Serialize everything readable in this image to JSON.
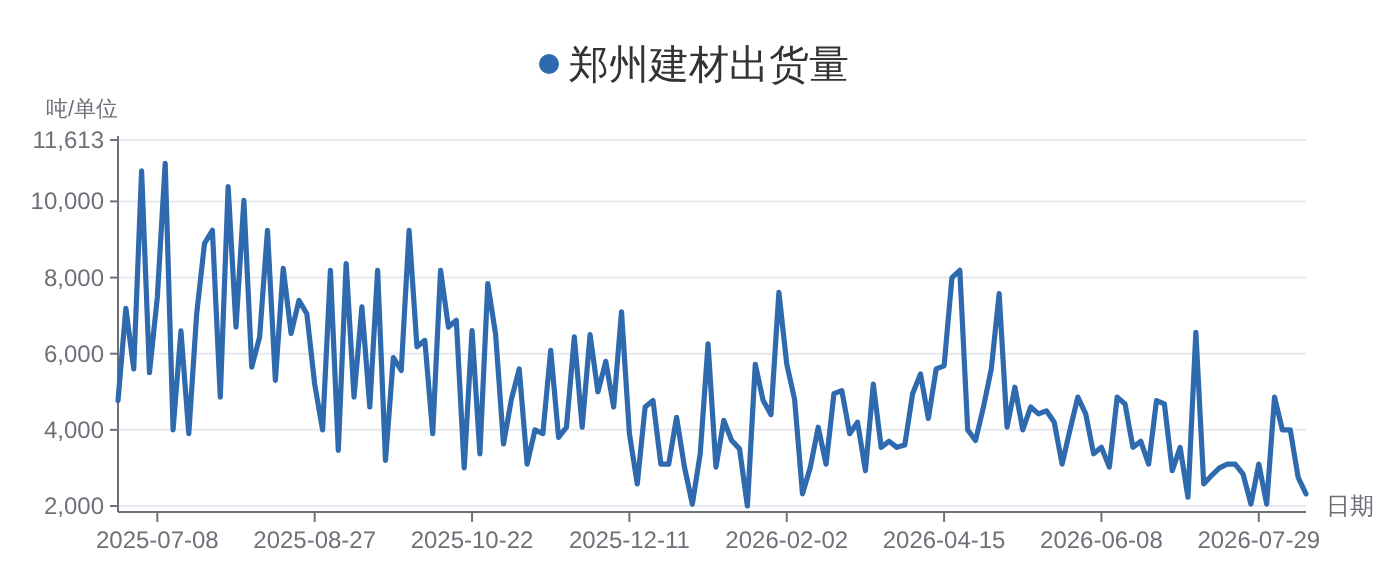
{
  "chart_data": {
    "type": "line",
    "xlabel": "日期",
    "ylabel": "吨/单位",
    "legend": "top",
    "grid": "y",
    "categories": [
      null,
      null,
      null,
      null,
      null,
      "2025-07-08",
      null,
      null,
      null,
      null,
      null,
      null,
      null,
      null,
      null,
      null,
      null,
      null,
      null,
      null,
      null,
      null,
      null,
      null,
      null,
      "2025-08-27",
      null,
      null,
      null,
      null,
      null,
      null,
      null,
      null,
      null,
      null,
      null,
      null,
      null,
      null,
      null,
      null,
      null,
      null,
      null,
      "2025-10-22",
      null,
      null,
      null,
      null,
      null,
      null,
      null,
      null,
      null,
      null,
      null,
      null,
      null,
      null,
      null,
      null,
      null,
      null,
      null,
      "2025-12-11",
      null,
      null,
      null,
      null,
      null,
      null,
      null,
      null,
      null,
      null,
      null,
      null,
      null,
      null,
      null,
      null,
      null,
      null,
      null,
      "2026-02-02",
      null,
      null,
      null,
      null,
      null,
      null,
      null,
      null,
      null,
      null,
      null,
      null,
      null,
      null,
      null,
      null,
      null,
      null,
      null,
      "2026-04-15",
      null,
      null,
      null,
      null,
      null,
      null,
      null,
      null,
      null,
      null,
      null,
      null,
      null,
      null,
      null,
      null,
      null,
      null,
      null,
      "2026-06-08",
      null,
      null,
      null,
      null,
      null,
      null,
      null,
      null,
      null,
      null,
      null,
      null,
      null,
      null,
      null,
      null,
      null,
      null,
      null,
      "2026-07-29",
      null,
      null,
      null,
      null,
      null,
      null
    ],
    "ylim": [
      2000,
      11613
    ],
    "yticks": [
      {
        "value": 2000,
        "label": "2,000"
      },
      {
        "value": 4000,
        "label": "4,000"
      },
      {
        "value": 6000,
        "label": "6,000"
      },
      {
        "value": 8000,
        "label": "8,000"
      },
      {
        "value": 10000,
        "label": "10,000"
      },
      {
        "value": 11613,
        "label": "11,613"
      }
    ],
    "series": [
      {
        "name": "郑州建材出货量",
        "color": "#2e6aad",
        "values": [
          4770,
          7190,
          5600,
          10800,
          5500,
          7490,
          11000,
          4000,
          6600,
          3900,
          7050,
          8900,
          9240,
          4860,
          10390,
          6700,
          10030,
          5650,
          6440,
          9240,
          5300,
          8240,
          6530,
          7400,
          7050,
          5200,
          4000,
          8190,
          3460,
          8370,
          4860,
          7230,
          4600,
          8190,
          3200,
          5900,
          5560,
          9240,
          6180,
          6350,
          3900,
          8190,
          6700,
          6880,
          3000,
          6610,
          3370,
          7840,
          6500,
          3630,
          4800,
          5600,
          3100,
          4000,
          3900,
          6090,
          3800,
          4070,
          6440,
          4070,
          6500,
          5000,
          5800,
          4600,
          7100,
          3900,
          2580,
          4600,
          4770,
          3100,
          3100,
          4330,
          3020,
          2050,
          3370,
          6260,
          3020,
          4250,
          3720,
          3500,
          2000,
          5720,
          4770,
          4400,
          7610,
          5730,
          4800,
          2320,
          3020,
          4070,
          3100,
          4950,
          5030,
          3900,
          4200,
          2930,
          5200,
          3540,
          3700,
          3540,
          3600,
          4950,
          5470,
          4300,
          5600,
          5680,
          8000,
          8190,
          4000,
          3720,
          4600,
          5600,
          7580,
          4070,
          5120,
          4000,
          4600,
          4420,
          4500,
          4200,
          3100,
          4000,
          4860,
          4420,
          3370,
          3540,
          3020,
          4860,
          4680,
          3540,
          3700,
          3100,
          4770,
          4680,
          2930,
          3540,
          2230,
          6560,
          2580,
          2800,
          3000,
          3100,
          3100,
          2840,
          2050,
          3100,
          2050,
          4860,
          4000,
          4000,
          2750,
          2320
        ]
      }
    ]
  }
}
